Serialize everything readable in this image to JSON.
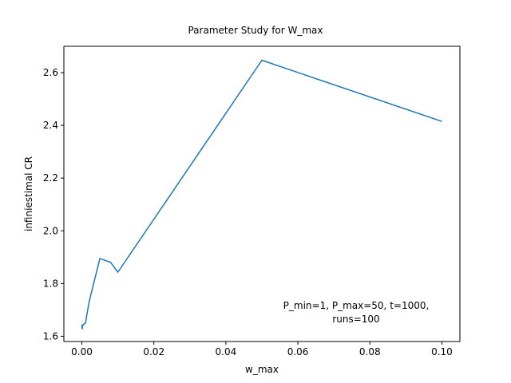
{
  "chart_data": {
    "type": "line",
    "title": "Parameter Study for W_max",
    "xlabel": "w_max",
    "ylabel": "infiniestimal CR",
    "xlim": [
      -0.005,
      0.105
    ],
    "ylim": [
      1.58,
      2.7
    ],
    "xticks": [
      0.0,
      0.02,
      0.04,
      0.06,
      0.08,
      0.1
    ],
    "xtick_labels": [
      "0.00",
      "0.02",
      "0.04",
      "0.06",
      "0.08",
      "0.10"
    ],
    "yticks": [
      1.6,
      1.8,
      2.0,
      2.2,
      2.4,
      2.6
    ],
    "ytick_labels": [
      "1.6",
      "1.8",
      "2.0",
      "2.2",
      "2.4",
      "2.6"
    ],
    "grid": false,
    "series": [
      {
        "color": "#1f77b4",
        "x": [
          0.0,
          0.0001,
          0.0002,
          0.0005,
          0.001,
          0.002,
          0.005,
          0.008,
          0.01,
          0.05,
          0.1
        ],
        "y": [
          1.645,
          1.628,
          1.64,
          1.645,
          1.65,
          1.73,
          1.895,
          1.88,
          1.843,
          2.647,
          2.415
        ]
      }
    ],
    "annotation": [
      "P_min=1, P_max=50, t=1000,",
      "runs=100"
    ]
  }
}
